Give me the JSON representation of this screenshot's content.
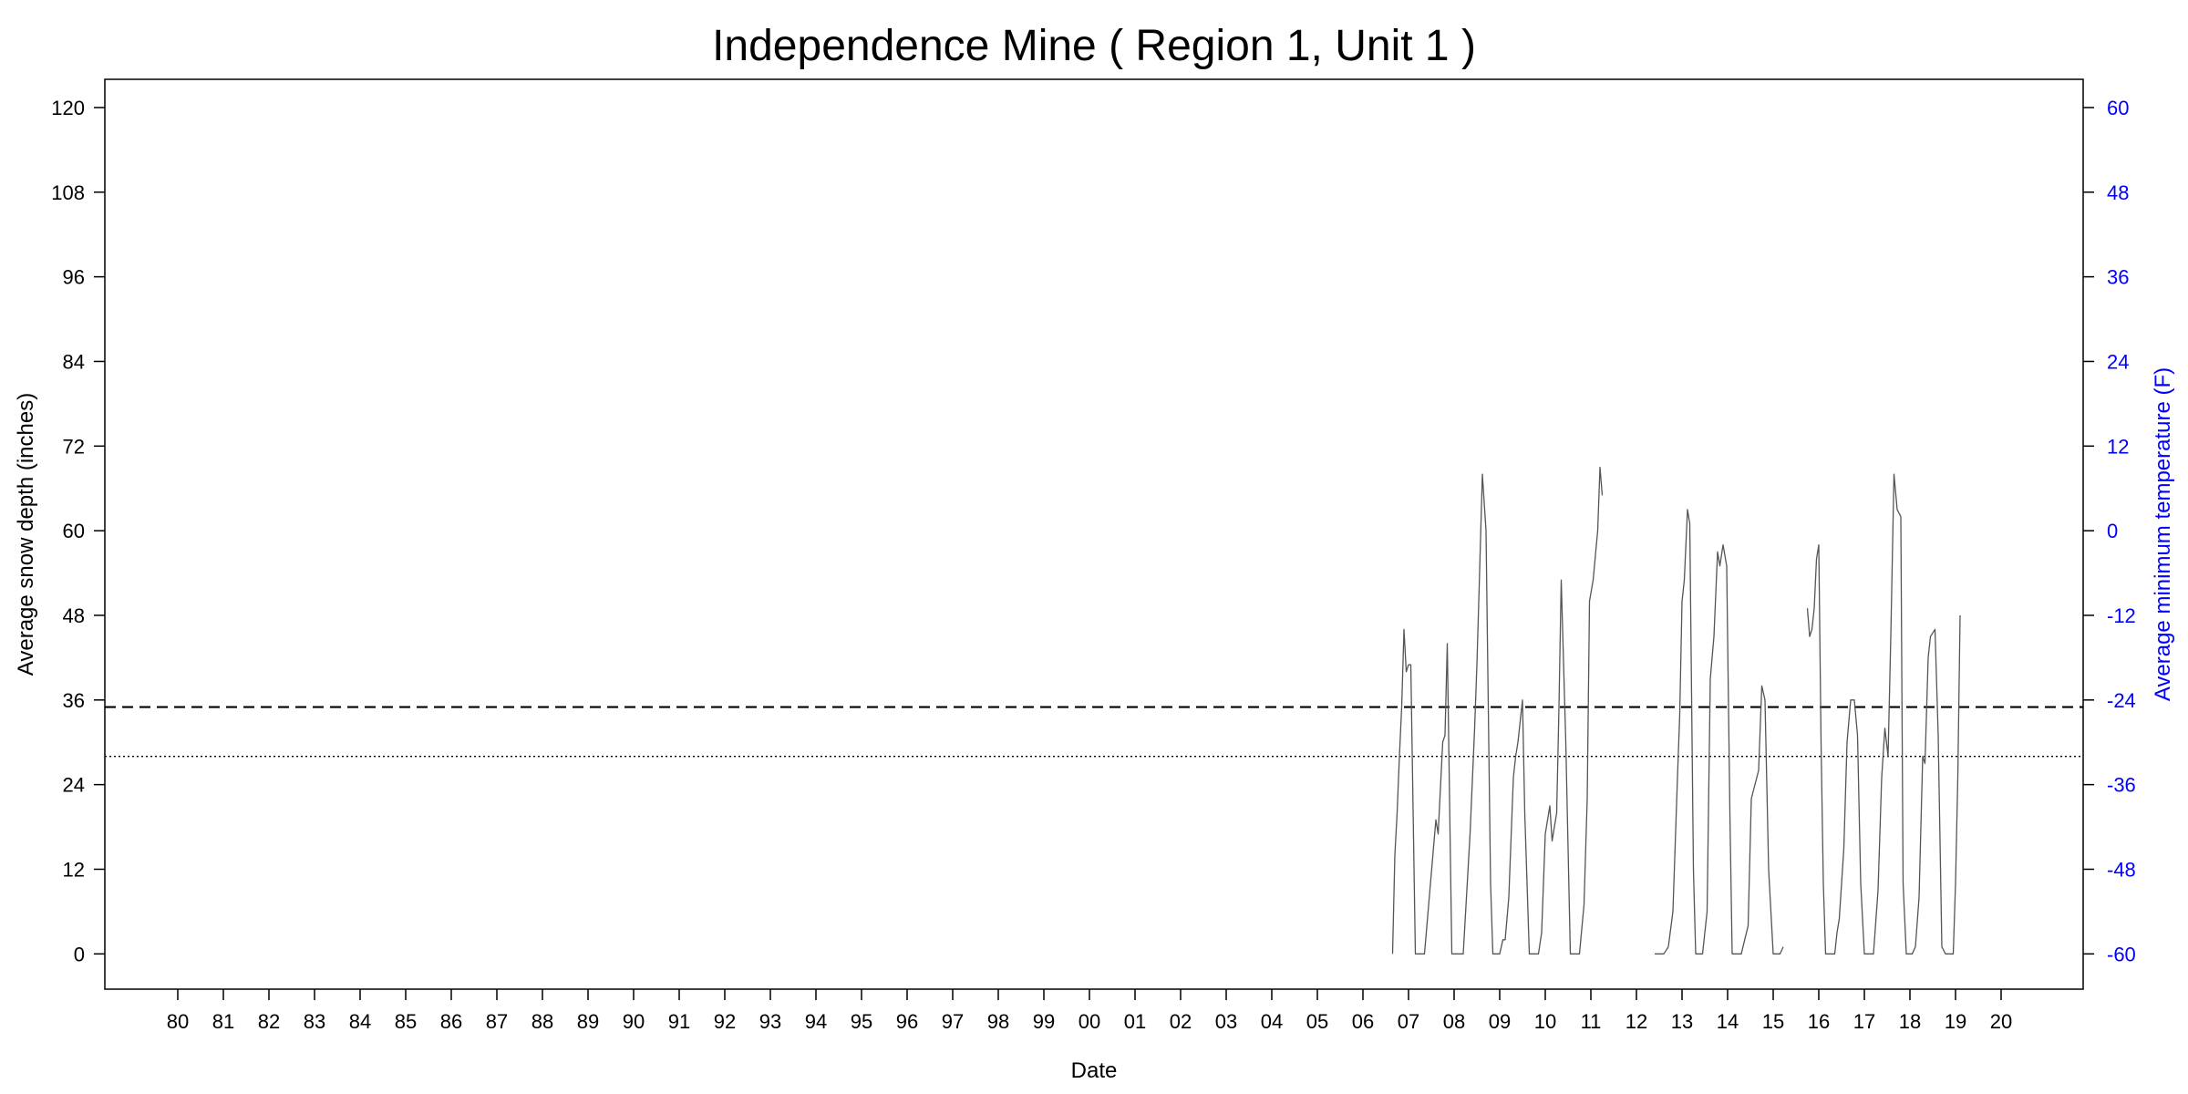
{
  "chart_data": {
    "type": "line",
    "title": "Independence Mine ( Region 1, Unit 1 )",
    "xlabel": "Date",
    "ylabel": "Average snow depth (inches)",
    "ylabel_right": "Average minimum temperature (F)",
    "ylim": [
      -5,
      124
    ],
    "y_ticks": [
      0,
      12,
      24,
      36,
      48,
      60,
      72,
      84,
      96,
      108,
      120
    ],
    "y_right_ticks": [
      -60,
      -48,
      -36,
      -24,
      -12,
      0,
      12,
      24,
      36,
      48,
      60
    ],
    "x_range": [
      1978.4,
      2021.8
    ],
    "x_ticks": [
      1980,
      1981,
      1982,
      1983,
      1984,
      1985,
      1986,
      1987,
      1988,
      1989,
      1990,
      1991,
      1992,
      1993,
      1994,
      1995,
      1996,
      1997,
      1998,
      1999,
      2000,
      2001,
      2002,
      2003,
      2004,
      2005,
      2006,
      2007,
      2008,
      2009,
      2010,
      2011,
      2012,
      2013,
      2014,
      2015,
      2016,
      2017,
      2018,
      2019,
      2020
    ],
    "x_tick_labels": [
      "80",
      "81",
      "82",
      "83",
      "84",
      "85",
      "86",
      "87",
      "88",
      "89",
      "90",
      "91",
      "92",
      "93",
      "94",
      "95",
      "96",
      "97",
      "98",
      "99",
      "00",
      "01",
      "02",
      "03",
      "04",
      "05",
      "06",
      "07",
      "08",
      "09",
      "10",
      "11",
      "12",
      "13",
      "14",
      "15",
      "16",
      "17",
      "18",
      "19",
      "20"
    ],
    "colors": {
      "axis": "#000000",
      "right_axis": "#0000ff",
      "series": "#555555",
      "reference": "#000000"
    },
    "reference_lines": [
      {
        "style": "dashed",
        "y": 35
      },
      {
        "style": "dotted",
        "y": 28
      }
    ],
    "series": [
      {
        "segments": [
          [
            [
              2006.65,
              0
            ],
            [
              2006.7,
              14
            ],
            [
              2006.75,
              20
            ],
            [
              2006.8,
              28
            ],
            [
              2006.85,
              35
            ],
            [
              2006.9,
              46
            ],
            [
              2006.95,
              40
            ],
            [
              2007.0,
              41
            ],
            [
              2007.05,
              41
            ],
            [
              2007.15,
              0
            ],
            [
              2007.35,
              0
            ],
            [
              2007.6,
              19
            ],
            [
              2007.65,
              17
            ],
            [
              2007.75,
              30
            ],
            [
              2007.8,
              31
            ],
            [
              2007.85,
              44
            ],
            [
              2007.95,
              0
            ],
            [
              2008.2,
              0
            ],
            [
              2008.35,
              17
            ],
            [
              2008.45,
              32
            ],
            [
              2008.5,
              41
            ],
            [
              2008.55,
              52
            ],
            [
              2008.62,
              68
            ],
            [
              2008.7,
              60
            ],
            [
              2008.8,
              10
            ],
            [
              2008.85,
              0
            ],
            [
              2009.0,
              0
            ],
            [
              2009.07,
              2
            ],
            [
              2009.12,
              2
            ],
            [
              2009.2,
              8
            ],
            [
              2009.3,
              25
            ],
            [
              2009.35,
              28
            ],
            [
              2009.4,
              30
            ],
            [
              2009.5,
              36
            ],
            [
              2009.55,
              20
            ],
            [
              2009.65,
              0
            ],
            [
              2009.85,
              0
            ],
            [
              2009.92,
              3
            ],
            [
              2010.0,
              17
            ],
            [
              2010.1,
              21
            ],
            [
              2010.15,
              16
            ],
            [
              2010.25,
              20
            ],
            [
              2010.3,
              35
            ],
            [
              2010.35,
              53
            ],
            [
              2010.45,
              30
            ],
            [
              2010.55,
              0
            ],
            [
              2010.75,
              0
            ],
            [
              2010.85,
              7
            ],
            [
              2010.92,
              22
            ],
            [
              2010.97,
              50
            ],
            [
              2011.05,
              53
            ],
            [
              2011.15,
              60
            ],
            [
              2011.2,
              69
            ],
            [
              2011.25,
              65
            ]
          ],
          [
            [
              2012.4,
              0
            ],
            [
              2012.6,
              0
            ],
            [
              2012.7,
              1
            ],
            [
              2012.8,
              6
            ],
            [
              2012.9,
              25
            ],
            [
              2012.95,
              34
            ],
            [
              2013.0,
              50
            ],
            [
              2013.05,
              53
            ],
            [
              2013.12,
              63
            ],
            [
              2013.17,
              61
            ],
            [
              2013.25,
              12
            ],
            [
              2013.3,
              0
            ],
            [
              2013.45,
              0
            ],
            [
              2013.55,
              6
            ],
            [
              2013.62,
              39
            ],
            [
              2013.7,
              45
            ],
            [
              2013.78,
              57
            ],
            [
              2013.83,
              55
            ],
            [
              2013.9,
              58
            ],
            [
              2013.98,
              55
            ],
            [
              2014.05,
              20
            ],
            [
              2014.1,
              0
            ],
            [
              2014.3,
              0
            ],
            [
              2014.45,
              4
            ],
            [
              2014.52,
              22
            ],
            [
              2014.6,
              24
            ],
            [
              2014.68,
              26
            ],
            [
              2014.75,
              38
            ],
            [
              2014.82,
              36
            ],
            [
              2014.9,
              12
            ],
            [
              2015.0,
              0
            ],
            [
              2015.15,
              0
            ],
            [
              2015.22,
              1
            ]
          ]
        ]
      },
      {
        "segments": [
          [
            [
              2015.75,
              49
            ],
            [
              2015.8,
              45
            ],
            [
              2015.85,
              46
            ],
            [
              2015.9,
              49
            ],
            [
              2015.95,
              56
            ],
            [
              2016.0,
              58
            ],
            [
              2016.05,
              30
            ],
            [
              2016.1,
              10
            ],
            [
              2016.15,
              0
            ],
            [
              2016.35,
              0
            ],
            [
              2016.4,
              3
            ],
            [
              2016.45,
              5
            ],
            [
              2016.55,
              15
            ],
            [
              2016.62,
              30
            ],
            [
              2016.7,
              36
            ],
            [
              2016.78,
              36
            ],
            [
              2016.85,
              31
            ],
            [
              2016.92,
              10
            ],
            [
              2017.0,
              0
            ],
            [
              2017.2,
              0
            ],
            [
              2017.3,
              9
            ],
            [
              2017.38,
              25
            ],
            [
              2017.45,
              32
            ],
            [
              2017.52,
              28
            ],
            [
              2017.58,
              45
            ],
            [
              2017.65,
              68
            ],
            [
              2017.72,
              63
            ],
            [
              2017.8,
              62
            ],
            [
              2017.85,
              10
            ],
            [
              2017.92,
              0
            ],
            [
              2018.05,
              0
            ],
            [
              2018.12,
              1
            ],
            [
              2018.2,
              8
            ],
            [
              2018.28,
              28
            ],
            [
              2018.33,
              27
            ],
            [
              2018.4,
              42
            ],
            [
              2018.45,
              45
            ],
            [
              2018.55,
              46
            ],
            [
              2018.62,
              31
            ],
            [
              2018.7,
              1
            ],
            [
              2018.78,
              0
            ],
            [
              2018.95,
              0
            ],
            [
              2019.0,
              10
            ],
            [
              2019.05,
              25
            ],
            [
              2019.1,
              48
            ]
          ]
        ]
      }
    ]
  }
}
